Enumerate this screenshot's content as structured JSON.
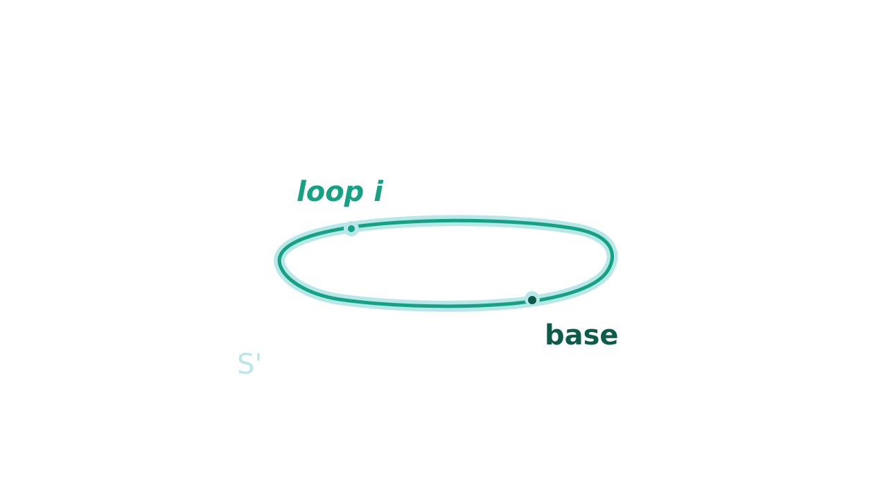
{
  "diagram": {
    "loop_label": "loop i",
    "base_label": "base",
    "space_label": "S'"
  },
  "colors": {
    "loop": "#14a283",
    "loop_halo": "#b8e7ea",
    "base_point": "#0b5d49",
    "base_text": "#0b5d49",
    "loop_text": "#14a283",
    "space_text": "#b8e7ea",
    "background": "#ffffff"
  }
}
